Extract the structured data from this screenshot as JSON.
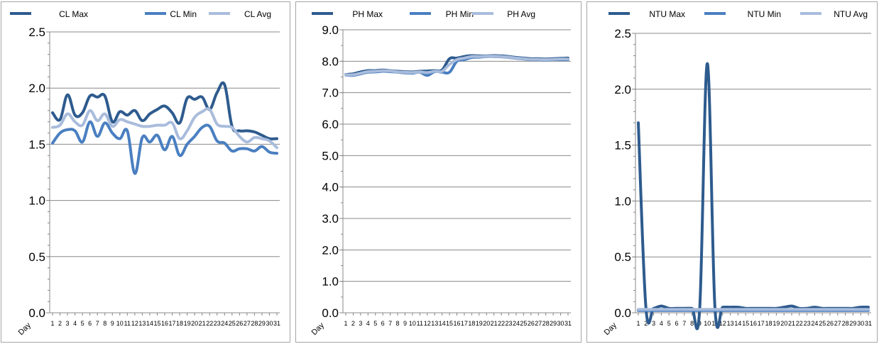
{
  "colors": {
    "max": "#2e5b8e",
    "min": "#4a7fc1",
    "avg": "#a9bcdc",
    "grid": "#888888",
    "axis": "#888888"
  },
  "chart_data": [
    {
      "type": "line",
      "title": "",
      "xlabel": "Day",
      "ylabel": "",
      "x": [
        1,
        2,
        3,
        4,
        5,
        6,
        7,
        8,
        9,
        10,
        11,
        12,
        13,
        14,
        15,
        16,
        17,
        18,
        19,
        20,
        21,
        22,
        23,
        24,
        25,
        26,
        27,
        28,
        29,
        30,
        31
      ],
      "ylim": [
        0,
        2.5
      ],
      "yticks": [
        "0.0",
        "0.5",
        "1.0",
        "1.5",
        "2.0",
        "2.5"
      ],
      "grid": true,
      "legend": "top",
      "series": [
        {
          "name": "CL Max",
          "values": [
            1.78,
            1.72,
            1.94,
            1.76,
            1.78,
            1.93,
            1.92,
            1.93,
            1.7,
            1.79,
            1.76,
            1.8,
            1.71,
            1.77,
            1.81,
            1.84,
            1.78,
            1.69,
            1.91,
            1.9,
            1.92,
            1.81,
            1.96,
            2.03,
            1.66,
            1.62,
            1.62,
            1.61,
            1.58,
            1.55,
            1.55
          ]
        },
        {
          "name": "CL Min",
          "values": [
            1.51,
            1.6,
            1.63,
            1.62,
            1.52,
            1.7,
            1.57,
            1.69,
            1.6,
            1.55,
            1.62,
            1.24,
            1.56,
            1.52,
            1.58,
            1.45,
            1.57,
            1.4,
            1.5,
            1.57,
            1.65,
            1.66,
            1.53,
            1.51,
            1.44,
            1.46,
            1.46,
            1.44,
            1.48,
            1.43,
            1.42
          ]
        },
        {
          "name": "CL Avg",
          "values": [
            1.65,
            1.67,
            1.77,
            1.7,
            1.67,
            1.8,
            1.71,
            1.77,
            1.66,
            1.72,
            1.7,
            1.68,
            1.66,
            1.66,
            1.67,
            1.67,
            1.69,
            1.55,
            1.62,
            1.74,
            1.79,
            1.81,
            1.68,
            1.66,
            1.65,
            1.57,
            1.52,
            1.56,
            1.55,
            1.53,
            1.47
          ]
        }
      ]
    },
    {
      "type": "line",
      "title": "",
      "xlabel": "Day",
      "ylabel": "",
      "x": [
        1,
        2,
        3,
        4,
        5,
        6,
        7,
        8,
        9,
        10,
        11,
        12,
        13,
        14,
        15,
        16,
        17,
        18,
        19,
        20,
        21,
        22,
        23,
        24,
        25,
        26,
        27,
        28,
        29,
        30,
        31
      ],
      "ylim": [
        0,
        9
      ],
      "yticks": [
        "0.0",
        "1.0",
        "2.0",
        "3.0",
        "4.0",
        "5.0",
        "6.0",
        "7.0",
        "8.0",
        "9.0"
      ],
      "grid": true,
      "legend": "top",
      "series": [
        {
          "name": "PH Max",
          "values": [
            7.58,
            7.6,
            7.66,
            7.7,
            7.7,
            7.72,
            7.7,
            7.68,
            7.67,
            7.66,
            7.68,
            7.69,
            7.7,
            7.72,
            8.08,
            8.1,
            8.15,
            8.18,
            8.17,
            8.17,
            8.18,
            8.17,
            8.15,
            8.12,
            8.1,
            8.08,
            8.08,
            8.07,
            8.08,
            8.09,
            8.1
          ]
        },
        {
          "name": "PH Min",
          "values": [
            7.56,
            7.55,
            7.6,
            7.65,
            7.66,
            7.68,
            7.67,
            7.65,
            7.63,
            7.62,
            7.65,
            7.55,
            7.67,
            7.65,
            7.65,
            8.0,
            8.05,
            8.12,
            8.13,
            8.15,
            8.15,
            8.14,
            8.12,
            8.09,
            8.07,
            8.05,
            8.05,
            8.04,
            8.05,
            8.05,
            8.05
          ]
        },
        {
          "name": "PH Avg",
          "values": [
            7.57,
            7.57,
            7.62,
            7.67,
            7.68,
            7.7,
            7.69,
            7.66,
            7.65,
            7.64,
            7.66,
            7.64,
            7.68,
            7.68,
            7.9,
            8.05,
            8.1,
            8.15,
            8.15,
            8.16,
            8.16,
            8.15,
            8.13,
            8.1,
            8.08,
            8.06,
            8.06,
            8.05,
            8.06,
            8.07,
            8.07
          ]
        }
      ]
    },
    {
      "type": "line",
      "title": "",
      "xlabel": "Day",
      "ylabel": "",
      "x": [
        1,
        2,
        3,
        4,
        5,
        6,
        7,
        8,
        9,
        10,
        11,
        12,
        13,
        14,
        15,
        16,
        17,
        18,
        19,
        20,
        21,
        22,
        23,
        24,
        25,
        26,
        27,
        28,
        29,
        30,
        31
      ],
      "ylim": [
        0,
        2.5
      ],
      "yticks": [
        "0.0",
        "0.5",
        "1.0",
        "1.5",
        "2.0",
        "2.5"
      ],
      "grid": true,
      "legend": "top",
      "series": [
        {
          "name": "NTU Max",
          "values": [
            1.7,
            0.04,
            0.04,
            0.06,
            0.04,
            0.04,
            0.04,
            0.04,
            0.03,
            2.23,
            0.04,
            0.05,
            0.05,
            0.05,
            0.04,
            0.04,
            0.04,
            0.04,
            0.04,
            0.05,
            0.06,
            0.04,
            0.04,
            0.05,
            0.04,
            0.04,
            0.04,
            0.04,
            0.04,
            0.05,
            0.05
          ]
        },
        {
          "name": "NTU Min",
          "values": [
            0.02,
            0.02,
            0.02,
            0.02,
            0.02,
            0.02,
            0.02,
            0.02,
            0.02,
            0.02,
            0.02,
            0.02,
            0.02,
            0.02,
            0.02,
            0.02,
            0.02,
            0.02,
            0.02,
            0.02,
            0.02,
            0.02,
            0.02,
            0.02,
            0.02,
            0.02,
            0.02,
            0.02,
            0.02,
            0.02,
            0.02
          ]
        },
        {
          "name": "NTU Avg",
          "values": [
            0.03,
            0.03,
            0.03,
            0.03,
            0.03,
            0.03,
            0.03,
            0.03,
            0.03,
            0.03,
            0.03,
            0.03,
            0.03,
            0.03,
            0.03,
            0.03,
            0.03,
            0.03,
            0.03,
            0.03,
            0.03,
            0.03,
            0.03,
            0.03,
            0.03,
            0.03,
            0.03,
            0.03,
            0.03,
            0.03,
            0.03
          ]
        }
      ]
    }
  ]
}
